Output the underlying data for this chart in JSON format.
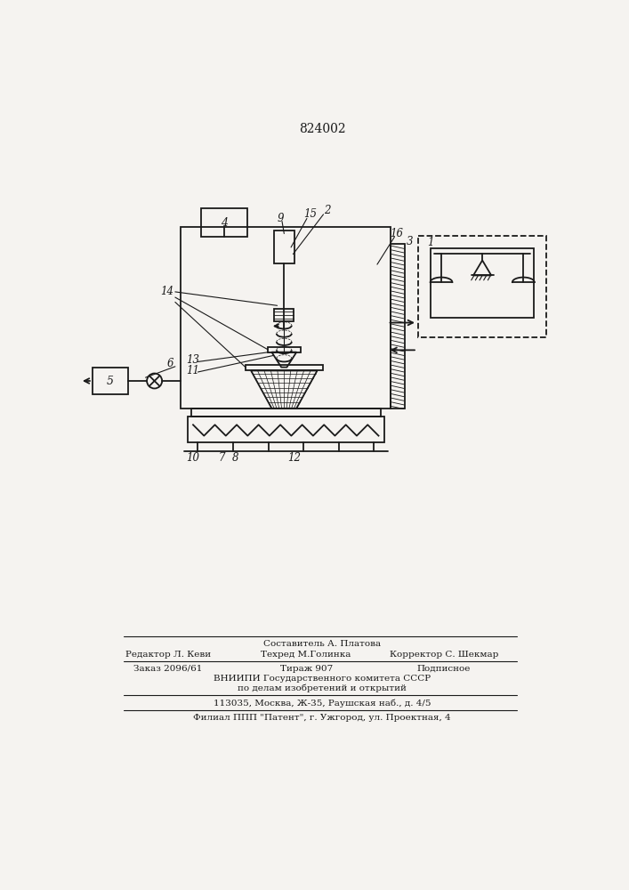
{
  "patent_number": "824002",
  "bg_color": "#f5f3f0",
  "line_color": "#1a1a1a",
  "footer_lines": [
    "Составитель А. Платова",
    "Редактор Л. Кеви",
    "Техред М.Голинка",
    "Корректор С. Шекмар",
    "Заказ 2096/61",
    "Тираж 907",
    "Подписное",
    "ВНИИПИ Государственного комитета СССР",
    "по делам изобретений и открытий",
    "113035, Москва, Ж-35, Раушская наб., д. 4/5",
    "Филиал ППП \"Патент\", г. Ужгород, ул. Проектная, 4"
  ]
}
